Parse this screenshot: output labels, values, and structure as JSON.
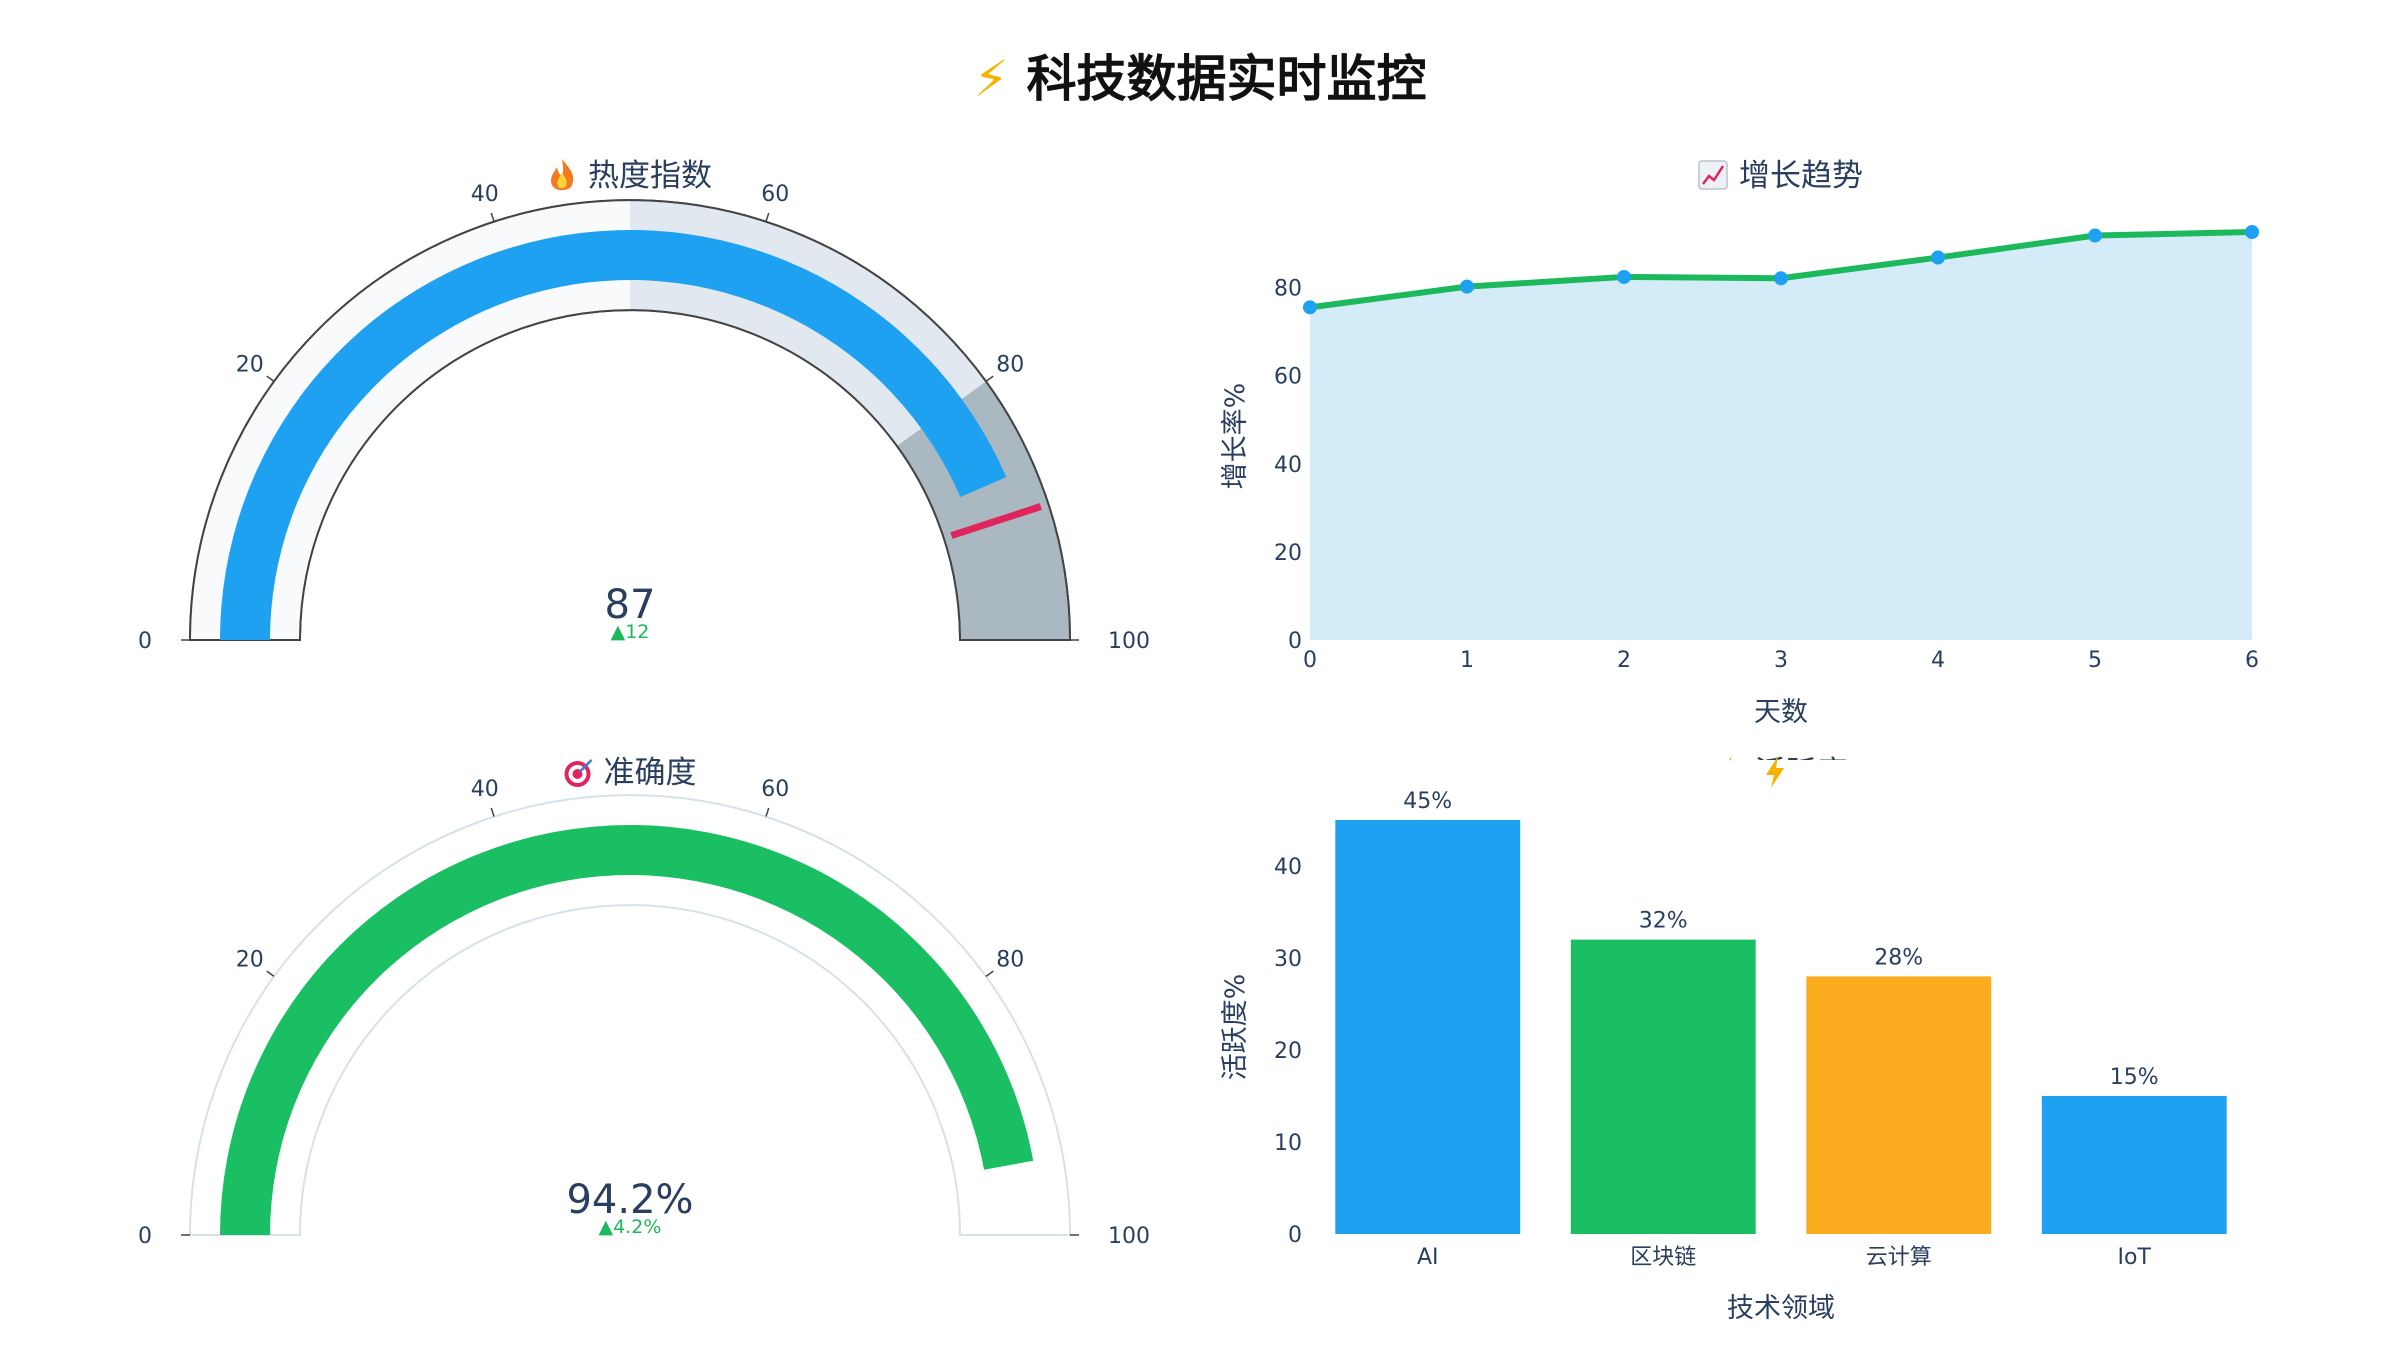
{
  "title": "科技数据实时监控",
  "title_icon": "lightning-icon",
  "chart_data": [
    {
      "type": "gauge",
      "title": "热度指数",
      "title_icon": "fire-icon",
      "value": 87,
      "value_text": "87",
      "delta_text": "▲12",
      "delta": 12,
      "range": [
        0,
        100
      ],
      "ticks": [
        0,
        20,
        40,
        60,
        80,
        100
      ],
      "bar_color": "#1fa1f2",
      "steps": [
        {
          "range": [
            0,
            50
          ],
          "color": "#f8fafc"
        },
        {
          "range": [
            50,
            80
          ],
          "color": "#e2e8f0"
        },
        {
          "range": [
            80,
            100
          ],
          "color": "#aab8c2"
        }
      ],
      "threshold": 90,
      "threshold_color": "#e0245e"
    },
    {
      "type": "line",
      "title": "增长趋势",
      "title_icon": "chart-increasing-icon",
      "x": [
        0,
        1,
        2,
        3,
        4,
        5,
        6
      ],
      "values": [
        75.5,
        80.2,
        82.4,
        82.1,
        86.8,
        91.8,
        92.6
      ],
      "xlabel": "天数",
      "ylabel": "增长率%",
      "xlim": [
        0,
        6
      ],
      "ylim": [
        0,
        92.6
      ],
      "xticks": [
        0,
        1,
        2,
        3,
        4,
        5,
        6
      ],
      "yticks": [
        0,
        20,
        40,
        60,
        80
      ],
      "line_color": "#1bb85c",
      "marker_color": "#1fa1f2",
      "fill_color": "#d4ebf8",
      "grid": false
    },
    {
      "type": "gauge",
      "title": "准确度",
      "title_icon": "target-icon",
      "value": 94.2,
      "value_text": "94.2%",
      "delta_text": "▲4.2%",
      "delta": 4.2,
      "range": [
        0,
        100
      ],
      "ticks": [
        0,
        20,
        40,
        60,
        80,
        100
      ],
      "bar_color": "#19bf62",
      "steps": [],
      "threshold": null
    },
    {
      "type": "bar",
      "title": "活跃度",
      "title_icon": "lightning-icon",
      "categories": [
        "AI",
        "区块链",
        "云计算",
        "IoT"
      ],
      "values": [
        45,
        32,
        28,
        15
      ],
      "labels": [
        "45%",
        "32%",
        "28%",
        "15%"
      ],
      "colors": [
        "#1fa1f2",
        "#19bf62",
        "#fcac1f",
        "#1fa1f2"
      ],
      "xlabel": "技术领域",
      "ylabel": "活跃度%",
      "ylim": [
        0,
        45
      ],
      "yticks": [
        0,
        10,
        20,
        30,
        40
      ],
      "grid": false
    }
  ]
}
